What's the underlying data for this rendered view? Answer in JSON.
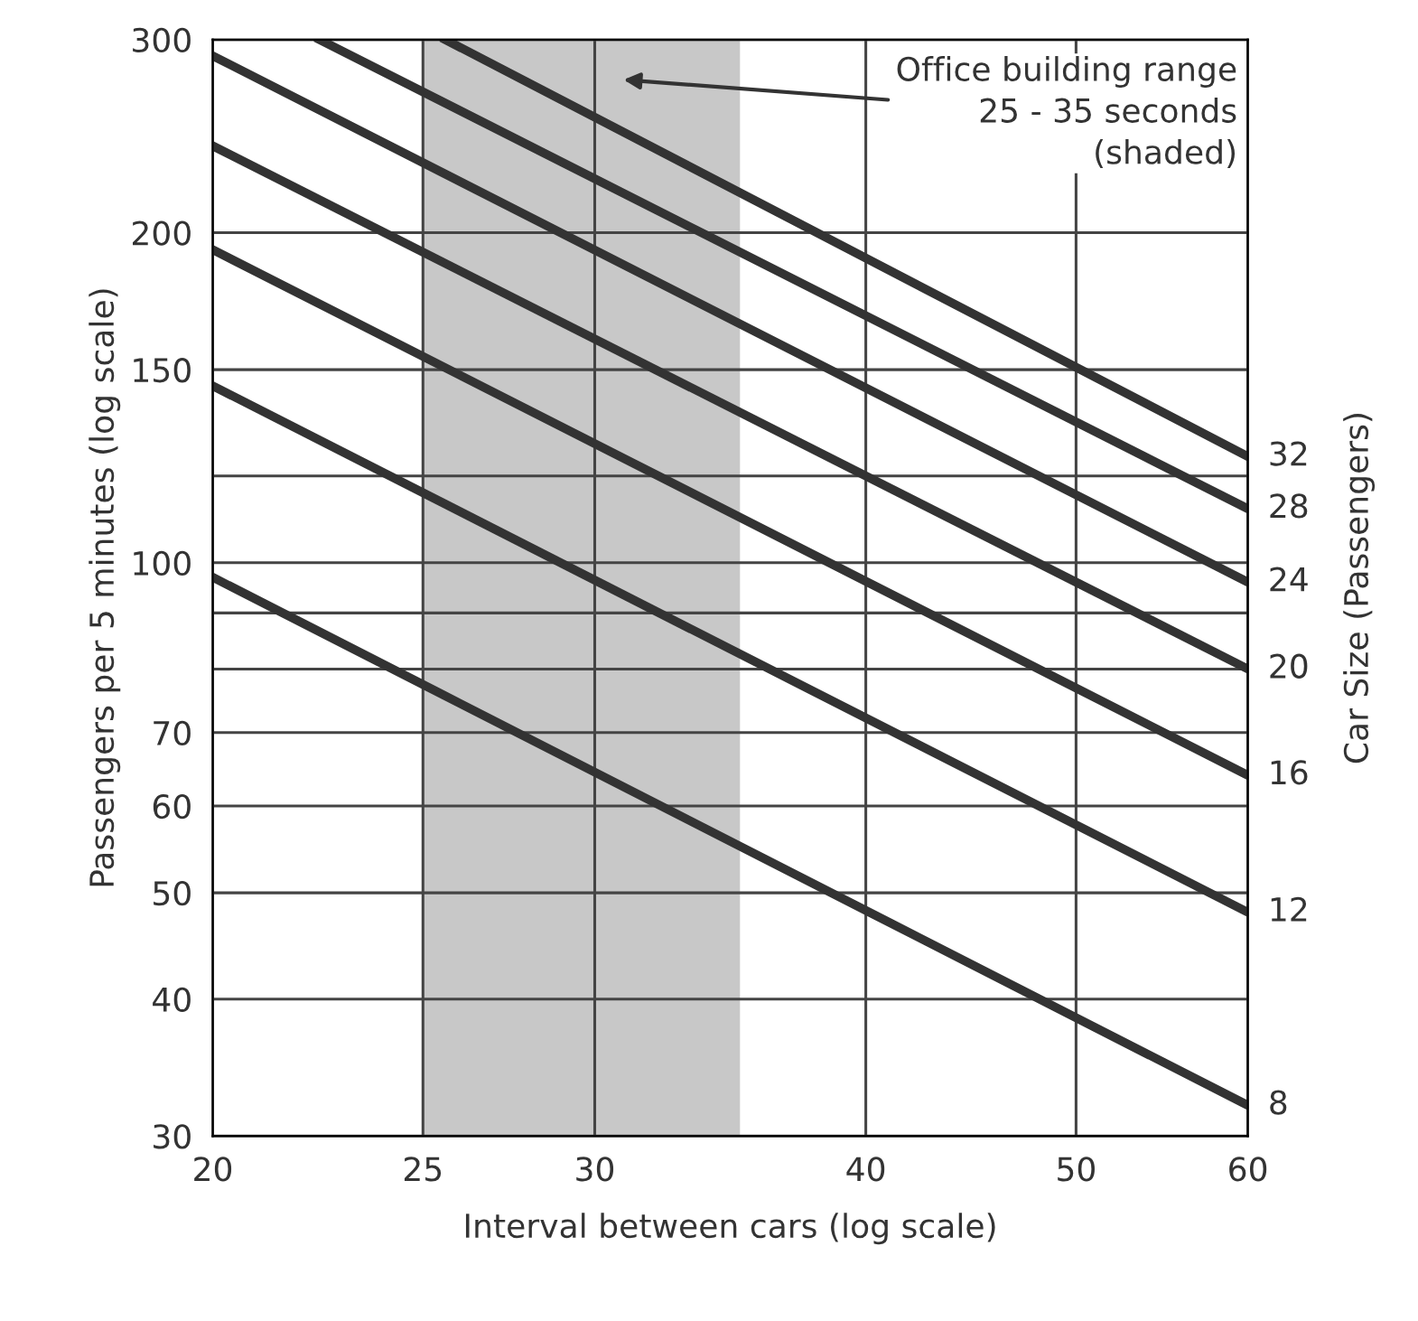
{
  "chart_data": {
    "type": "line",
    "xlabel": "Interval between cars (log scale)",
    "ylabel": "Passengers per 5 minutes (log scale)",
    "y2label": "Car Size (Passengers)",
    "log": "xy",
    "xlim": [
      20,
      60
    ],
    "ylim": [
      30,
      300
    ],
    "xticks": [
      20,
      25,
      30,
      40,
      50,
      60
    ],
    "yticks": [
      30,
      40,
      50,
      60,
      70,
      {
        "value": 80,
        "label": null
      },
      {
        "value": 90,
        "label": null
      },
      100,
      {
        "value": 120,
        "label": null
      },
      150,
      200,
      300
    ],
    "grid": true,
    "legend": false,
    "marker": "none",
    "line_style": "solid",
    "bands": [
      {
        "axis": "x",
        "from": 25,
        "to": 35,
        "label": "Office building range\n25 - 35 seconds\n(shaded)",
        "color": "#c8c8c8"
      }
    ],
    "series": [
      {
        "name": "8",
        "color": "#333333",
        "x": [
          20,
          60
        ],
        "values": [
          97,
          32
        ]
      },
      {
        "name": "12",
        "color": "#333333",
        "x": [
          20,
          60
        ],
        "values": [
          145,
          48
        ]
      },
      {
        "name": "16",
        "color": "#333333",
        "x": [
          20,
          60
        ],
        "values": [
          193,
          64
        ]
      },
      {
        "name": "20",
        "color": "#333333",
        "x": [
          20,
          60
        ],
        "values": [
          240,
          80
        ]
      },
      {
        "name": "24",
        "color": "#333333",
        "x": [
          20,
          60
        ],
        "values": [
          290,
          96
        ]
      },
      {
        "name": "28",
        "color": "#333333",
        "x": [
          22.4,
          60
        ],
        "values": [
          300,
          112
        ]
      },
      {
        "name": "32",
        "color": "#333333",
        "x": [
          25.6,
          60
        ],
        "values": [
          300,
          125
        ]
      }
    ]
  }
}
